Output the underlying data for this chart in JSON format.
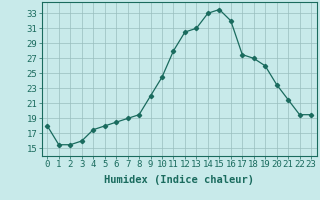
{
  "x": [
    0,
    1,
    2,
    3,
    4,
    5,
    6,
    7,
    8,
    9,
    10,
    11,
    12,
    13,
    14,
    15,
    16,
    17,
    18,
    19,
    20,
    21,
    22,
    23
  ],
  "y": [
    18,
    15.5,
    15.5,
    16,
    17.5,
    18,
    18.5,
    19,
    19.5,
    22,
    24.5,
    28,
    30.5,
    31,
    33,
    33.5,
    32,
    27.5,
    27,
    26,
    23.5,
    21.5,
    19.5,
    19.5
  ],
  "line_color": "#1a6b5e",
  "marker": "D",
  "marker_size": 2.2,
  "bg_color": "#c8eaea",
  "grid_color": "#9abebe",
  "xlabel": "Humidex (Indice chaleur)",
  "xlabel_fontsize": 7.5,
  "tick_fontsize": 6.5,
  "xlim": [
    -0.5,
    23.5
  ],
  "ylim": [
    14.0,
    34.5
  ],
  "yticks": [
    15,
    17,
    19,
    21,
    23,
    25,
    27,
    29,
    31,
    33
  ]
}
